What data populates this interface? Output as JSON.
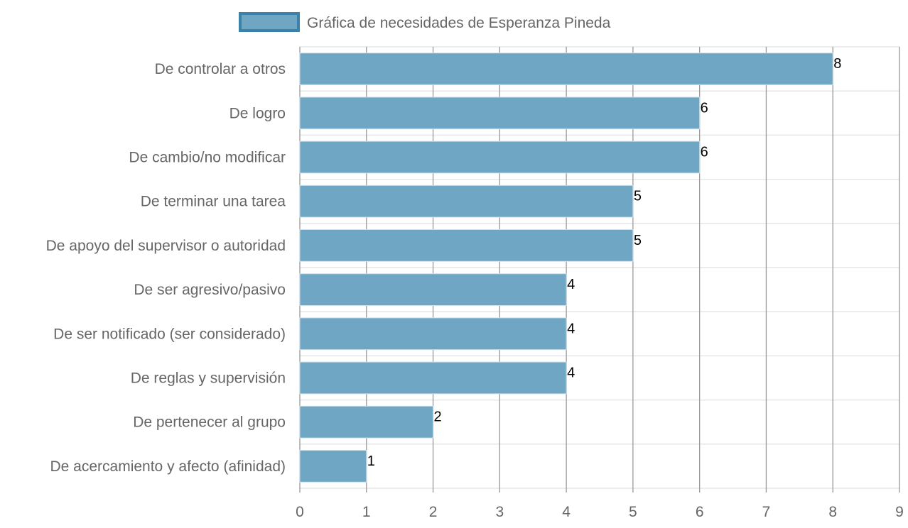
{
  "chart_data": {
    "type": "bar",
    "orientation": "horizontal",
    "categories": [
      "De controlar a otros",
      "De logro",
      "De cambio/no modificar",
      "De terminar una tarea",
      "De apoyo del supervisor o autoridad",
      "De ser agresivo/pasivo",
      "De ser notificado (ser considerado)",
      "De reglas y supervisión",
      "De pertenecer al grupo",
      "De acercamiento y afecto (afinidad)"
    ],
    "series": [
      {
        "name": "Gráfica de necesidades de Esperanza Pineda",
        "values": [
          8,
          6,
          6,
          5,
          5,
          4,
          4,
          4,
          2,
          1
        ]
      }
    ],
    "xlim": [
      0,
      9
    ],
    "xticks": [
      "0",
      "1",
      "2",
      "3",
      "4",
      "5",
      "6",
      "7",
      "8",
      "9"
    ],
    "grid": true,
    "legend_position": "top-center",
    "colors": {
      "bar_fill": "#6ea6c4",
      "bar_border": "#3c82a8",
      "grid_vertical": "#999999",
      "grid_horizontal": "#e6e6e6",
      "label_text": "#666666",
      "data_label_text": "#000000"
    }
  }
}
